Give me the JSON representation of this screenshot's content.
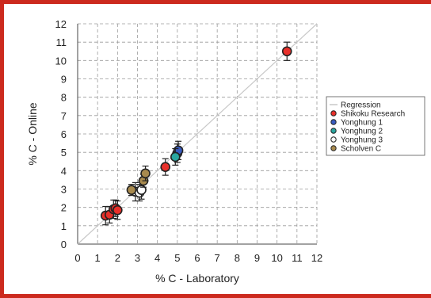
{
  "chart_data": {
    "type": "scatter",
    "xlabel": "% C - Laboratory",
    "ylabel": "% C - Online",
    "xlim": [
      0,
      12
    ],
    "ylim": [
      0,
      12
    ],
    "xticks": [
      "0",
      "1",
      "2",
      "3",
      "4",
      "5",
      "6",
      "7",
      "8",
      "9",
      "10",
      "11",
      "12"
    ],
    "yticks": [
      "0",
      "1",
      "2",
      "3",
      "4",
      "5",
      "6",
      "7",
      "8",
      "9",
      "10",
      "11",
      "12"
    ],
    "grid": true,
    "legend_position": "right",
    "regression": {
      "name": "Regression",
      "from": [
        0,
        0
      ],
      "to": [
        12,
        12
      ],
      "color": "#c8c8c8"
    },
    "series": [
      {
        "name": "Shikoku Research",
        "color": "#e8302a",
        "points": [
          [
            1.4,
            1.55,
            0.5
          ],
          [
            1.6,
            1.6,
            0.45
          ],
          [
            1.8,
            1.9,
            0.5
          ],
          [
            1.9,
            1.95,
            0.45
          ],
          [
            2.0,
            1.85,
            0.5
          ],
          [
            4.4,
            4.2,
            0.45
          ],
          [
            10.5,
            10.5,
            0.5
          ]
        ]
      },
      {
        "name": "Yonghung 1",
        "color": "#3a5cc0",
        "points": [
          [
            5.0,
            4.95,
            0.5
          ],
          [
            5.05,
            5.1,
            0.5
          ]
        ]
      },
      {
        "name": "Yonghung 2",
        "color": "#2aa6a0",
        "points": [
          [
            4.9,
            4.75,
            0.45
          ]
        ]
      },
      {
        "name": "Yonghung 3",
        "color": "#ffffff",
        "points": [
          [
            2.9,
            2.85,
            0.5
          ],
          [
            3.1,
            2.8,
            0.45
          ],
          [
            3.2,
            2.95,
            0.5
          ]
        ]
      },
      {
        "name": "Scholven C",
        "color": "#a88a4e",
        "points": [
          [
            2.7,
            2.95,
            0.3
          ],
          [
            3.3,
            3.45,
            0.35
          ],
          [
            3.4,
            3.85,
            0.4
          ]
        ]
      }
    ]
  }
}
